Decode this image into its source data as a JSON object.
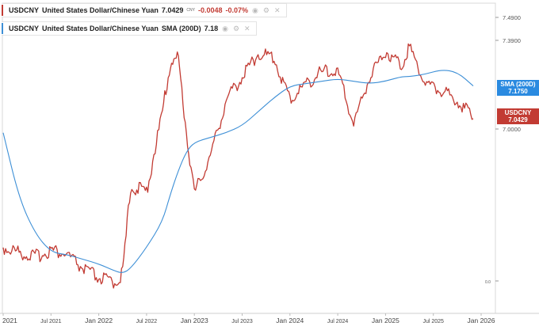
{
  "legend_price": {
    "symbol": "USDCNY",
    "name": "United States Dollar/Chinese Yuan",
    "value": "7.0429",
    "unit": "CNY",
    "change": "-0.0048",
    "change_pct": "-0.07%",
    "color": "#c23b33"
  },
  "legend_sma": {
    "symbol": "USDCNY",
    "name": "United States Dollar/Chinese Yuan",
    "indicator": "SMA (200D)",
    "value": "7.18",
    "color": "#3d8fd6"
  },
  "tags": {
    "sma_label": "SMA (200D)",
    "sma_value": "7.1750",
    "price_label": "USDCNY",
    "price_value": "7.0429"
  },
  "chart_data": {
    "type": "line",
    "y_axis_labels": [
      "7.4900",
      "7.3900",
      "7.0000",
      "0.0"
    ],
    "x_axis_labels": [
      "2021",
      "Jul 2021",
      "Jan 2022",
      "Jul 2022",
      "Jan 2023",
      "Jul 2023",
      "Jan 2024",
      "Jul 2024",
      "Jan 2025",
      "Jul 2025",
      "Jan 2026"
    ],
    "x": [
      "2021-01",
      "2021-03",
      "2021-05",
      "2021-07",
      "2021-09",
      "2021-11",
      "2022-01",
      "2022-03",
      "2022-04",
      "2022-05",
      "2022-07",
      "2022-09",
      "2022-10",
      "2022-11",
      "2022-12",
      "2023-01",
      "2023-03",
      "2023-05",
      "2023-07",
      "2023-09",
      "2023-11",
      "2024-01",
      "2024-03",
      "2024-05",
      "2024-07",
      "2024-09",
      "2024-11",
      "2025-01",
      "2025-03",
      "2025-04",
      "2025-06",
      "2025-08",
      "2025-10",
      "2025-12"
    ],
    "series": [
      {
        "name": "USDCNY",
        "color": "#c23b33",
        "values": [
          6.49,
          6.47,
          6.45,
          6.48,
          6.46,
          6.4,
          6.36,
          6.34,
          6.38,
          6.75,
          6.73,
          7.07,
          7.28,
          7.3,
          6.98,
          6.72,
          6.88,
          7.12,
          7.22,
          7.32,
          7.3,
          7.12,
          7.19,
          7.24,
          7.24,
          7.02,
          7.22,
          7.33,
          7.27,
          7.35,
          7.19,
          7.16,
          7.12,
          7.04
        ]
      },
      {
        "name": "SMA (200D)",
        "color": "#3d8fd6",
        "values": [
          6.98,
          6.7,
          6.55,
          6.47,
          6.46,
          6.44,
          6.42,
          6.39,
          6.38,
          6.4,
          6.49,
          6.6,
          6.72,
          6.82,
          6.9,
          6.94,
          6.96,
          6.98,
          7.01,
          7.07,
          7.13,
          7.18,
          7.19,
          7.2,
          7.21,
          7.2,
          7.19,
          7.2,
          7.22,
          7.22,
          7.23,
          7.25,
          7.24,
          7.18
        ]
      }
    ]
  }
}
